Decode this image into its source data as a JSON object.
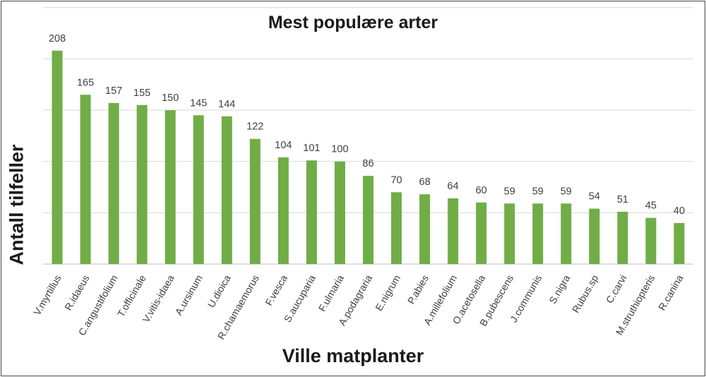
{
  "chart_data": {
    "type": "bar",
    "title": "Mest populære arter",
    "xlabel": "Ville matplanter",
    "ylabel": "Antall tilfeller",
    "categories": [
      "V.myrtillus",
      "R.idaeus",
      "C.angustifolium",
      "T.officinale",
      "V.vitis-idaea",
      "A.ursinum",
      "U.dioica",
      "R.chamaemorus",
      "F.vesca",
      "S.aucuparia",
      "F.ulmaria",
      "A.podagraria",
      "E.nigrum",
      "P.abies",
      "A.millefolium",
      "O.acetosella",
      "B.pubescens",
      "J.communis",
      "S.nigra",
      "Rubus.sp",
      "C.carvi",
      "M.struthiopteris",
      "R.canina"
    ],
    "values": [
      208,
      165,
      157,
      155,
      150,
      145,
      144,
      122,
      104,
      101,
      100,
      86,
      70,
      68,
      64,
      60,
      59,
      59,
      59,
      54,
      51,
      45,
      40
    ],
    "ylim": [
      0,
      250
    ],
    "gridlines": [
      50,
      100,
      150,
      200,
      250
    ],
    "grid": true,
    "legend": "none",
    "bar_color": "#70ad47"
  }
}
